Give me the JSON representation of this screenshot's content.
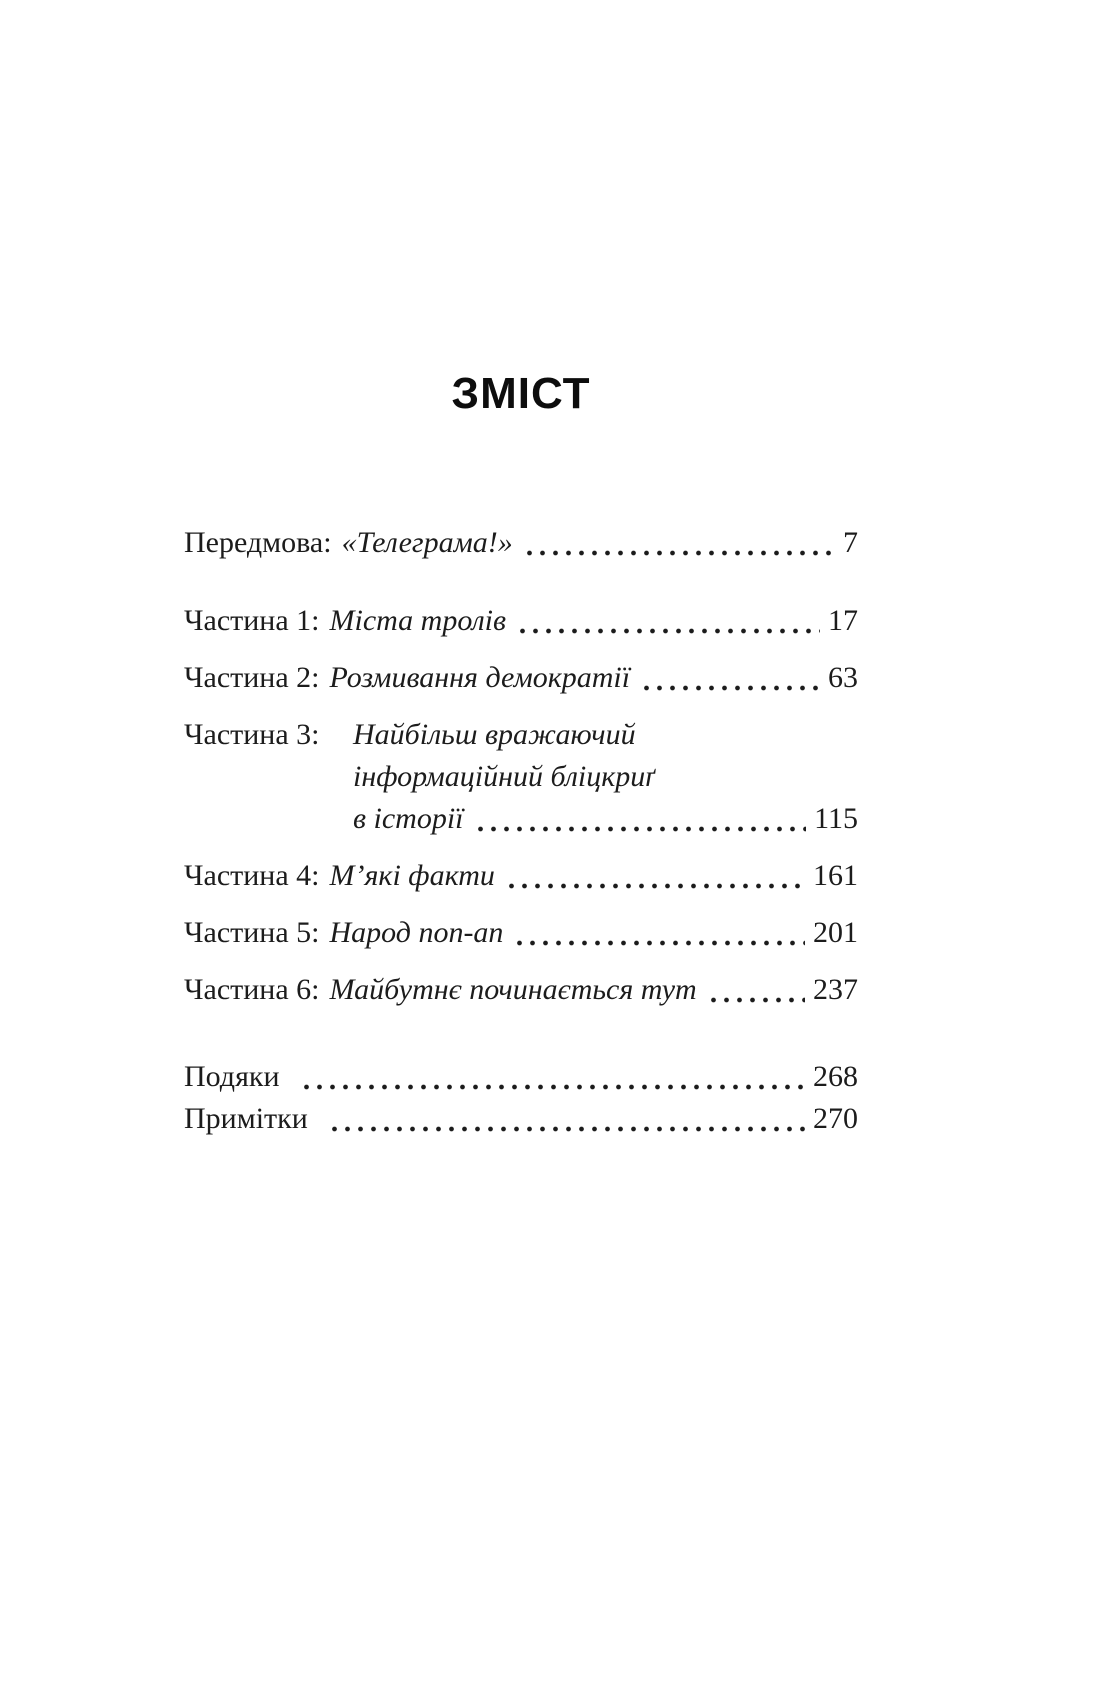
{
  "page": {
    "background": "#ffffff",
    "text_color": "#1c1c1c",
    "title": "ЗМІСТ"
  },
  "toc": {
    "entries": [
      {
        "section": "front",
        "label": "Передмова:",
        "title": "«Телеграма!»",
        "page": "7"
      },
      {
        "section": "parts",
        "label": "Частина 1:",
        "title": "Міста тролів",
        "page": "17"
      },
      {
        "section": "parts",
        "label": "Частина 2:",
        "title": "Розмивання демократії",
        "page": "63"
      },
      {
        "section": "parts",
        "label": "Частина 3:",
        "title_lines": [
          "Найбільш вражаючий",
          "інформаційний бліцкриґ",
          "в історії"
        ],
        "page": "115"
      },
      {
        "section": "parts",
        "label": "Частина 4:",
        "title": "М’які факти",
        "page": "161"
      },
      {
        "section": "parts",
        "label": "Частина 5:",
        "title": "Народ поп-ап",
        "page": "201"
      },
      {
        "section": "parts",
        "label": "Частина 6:",
        "title": "Майбутнє починається тут",
        "page": "237"
      },
      {
        "section": "back",
        "label": "Подяки",
        "page": "268"
      },
      {
        "section": "back",
        "label": "Примітки",
        "page": "270"
      }
    ]
  }
}
